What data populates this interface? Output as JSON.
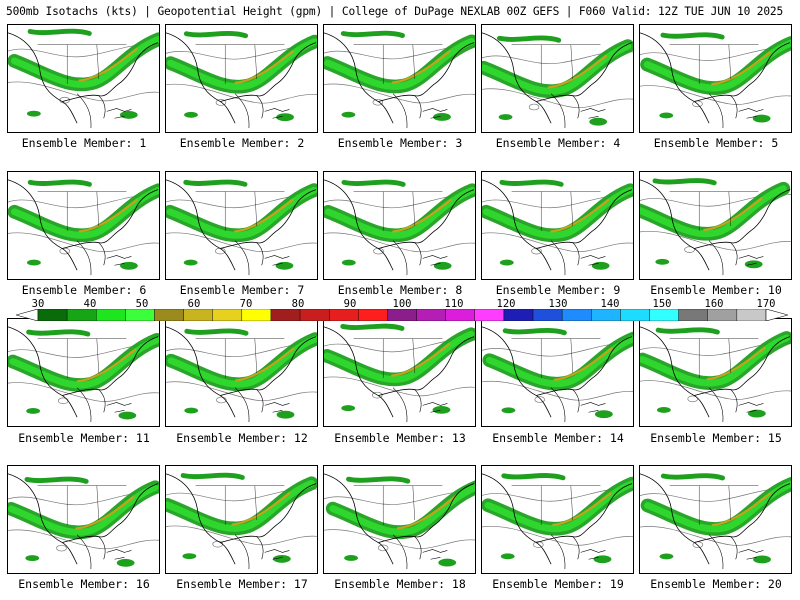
{
  "title": "500mb Isotachs (kts) | Geopotential Height (gpm) | College of DuPage NEXLAB   00Z GEFS | F060 Valid: 12Z TUE JUN 10 2025",
  "panels": [
    {
      "label": "Ensemble Member: 1"
    },
    {
      "label": "Ensemble Member: 2"
    },
    {
      "label": "Ensemble Member: 3"
    },
    {
      "label": "Ensemble Member: 4"
    },
    {
      "label": "Ensemble Member: 5"
    },
    {
      "label": "Ensemble Member: 6"
    },
    {
      "label": "Ensemble Member: 7"
    },
    {
      "label": "Ensemble Member: 8"
    },
    {
      "label": "Ensemble Member: 9"
    },
    {
      "label": "Ensemble Member: 10"
    },
    {
      "label": "Ensemble Member: 11"
    },
    {
      "label": "Ensemble Member: 12"
    },
    {
      "label": "Ensemble Member: 13"
    },
    {
      "label": "Ensemble Member: 14"
    },
    {
      "label": "Ensemble Member: 15"
    },
    {
      "label": "Ensemble Member: 16"
    },
    {
      "label": "Ensemble Member: 17"
    },
    {
      "label": "Ensemble Member: 18"
    },
    {
      "label": "Ensemble Member: 19"
    },
    {
      "label": "Ensemble Member: 20"
    }
  ],
  "colorbar": {
    "ticks": [
      "30",
      "40",
      "50",
      "60",
      "70",
      "80",
      "90",
      "100",
      "110",
      "120",
      "130",
      "140",
      "150",
      "160",
      "170"
    ],
    "colors": [
      "#0a6b0a",
      "#15a515",
      "#1ee61e",
      "#3cff3c",
      "#9b8b1e",
      "#c8b41e",
      "#e6d21e",
      "#ffff00",
      "#a01e1e",
      "#c81e1e",
      "#e61e1e",
      "#ff1e1e",
      "#8c1e8c",
      "#b41eb4",
      "#dc1edc",
      "#ff3cff",
      "#1e1eb4",
      "#1e50dc",
      "#1e8cff",
      "#1eb4ff",
      "#1edcff",
      "#32ffff",
      "#787878",
      "#a0a0a0",
      "#c8c8c8"
    ]
  }
}
